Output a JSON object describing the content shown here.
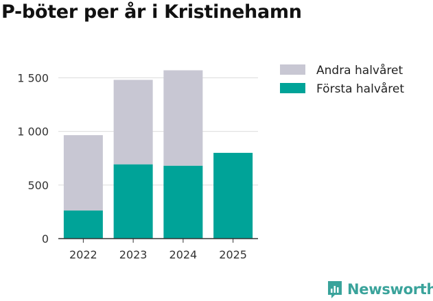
{
  "chart_data": {
    "type": "bar",
    "stacked": true,
    "title": "P-böter per år i Kristinehamn",
    "categories": [
      "2022",
      "2023",
      "2024",
      "2025"
    ],
    "series": [
      {
        "name": "Första halvåret",
        "color": "#00a398",
        "values": [
          262,
          693,
          680,
          800
        ]
      },
      {
        "name": "Andra halvåret",
        "color": "#c8c7d3",
        "values": [
          703,
          788,
          890,
          0
        ]
      }
    ],
    "legend_order": [
      "Andra halvåret",
      "Första halvåret"
    ],
    "ylim": [
      0,
      1650
    ],
    "yticks": [
      0,
      500,
      1000,
      1500
    ],
    "ytick_labels": [
      "0",
      "500",
      "1 000",
      "1 500"
    ],
    "grid": true,
    "legend_position": "right"
  },
  "brand": {
    "name": "Newsworthy",
    "icon": "newsworthy-logo-icon",
    "color": "#3aa39b"
  }
}
